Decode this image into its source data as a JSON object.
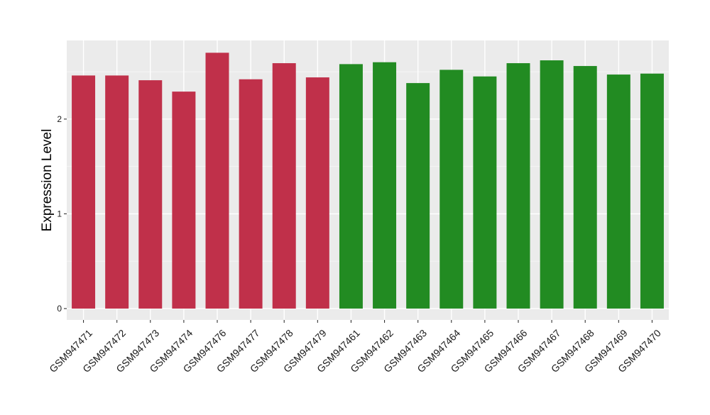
{
  "chart_data": {
    "type": "bar",
    "title": "",
    "xlabel": "",
    "ylabel": "Expression Level",
    "ylim": [
      -0.12,
      2.83
    ],
    "yticks": [
      0,
      1,
      2
    ],
    "grid": true,
    "legend": "none",
    "colors": {
      "panel_bg": "#ebebeb",
      "grid_major": "#ffffff",
      "grid_minor": "#f5f5f5",
      "tick_text": "#1a1a1a",
      "axis_ticks": "#333333"
    },
    "categories": [
      "GSM947471",
      "GSM947472",
      "GSM947473",
      "GSM947474",
      "GSM947476",
      "GSM947477",
      "GSM947478",
      "GSM947479",
      "GSM947461",
      "GSM947462",
      "GSM947463",
      "GSM947464",
      "GSM947465",
      "GSM947466",
      "GSM947467",
      "GSM947468",
      "GSM947469",
      "GSM947470"
    ],
    "values": [
      2.46,
      2.46,
      2.41,
      2.29,
      2.7,
      2.42,
      2.59,
      2.44,
      2.58,
      2.6,
      2.38,
      2.52,
      2.45,
      2.59,
      2.62,
      2.56,
      2.47,
      2.48
    ],
    "bar_colors": [
      "#c0304a",
      "#c0304a",
      "#c0304a",
      "#c0304a",
      "#c0304a",
      "#c0304a",
      "#c0304a",
      "#c0304a",
      "#228b22",
      "#228b22",
      "#228b22",
      "#228b22",
      "#228b22",
      "#228b22",
      "#228b22",
      "#228b22",
      "#228b22",
      "#228b22"
    ]
  }
}
